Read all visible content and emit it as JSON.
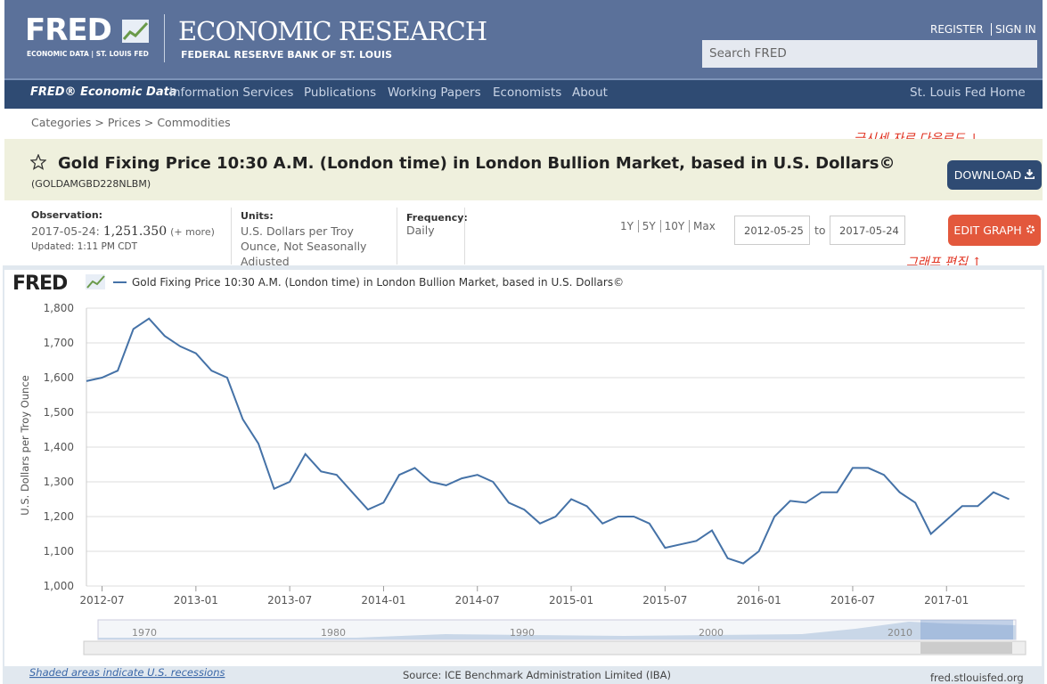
{
  "header": {
    "logo": "FRED",
    "logo_sub": "ECONOMIC DATA | ST. LOUIS FED",
    "org": "ECONOMIC RESEARCH",
    "org_sub": "FEDERAL RESERVE BANK OF ST. LOUIS",
    "register": "REGISTER",
    "sign_in": "SIGN IN",
    "search_placeholder": "Search FRED"
  },
  "nav": {
    "items": [
      "FRED® Economic Data",
      "Information Services",
      "Publications",
      "Working Papers",
      "Economists",
      "About"
    ],
    "right": "St. Louis Fed Home"
  },
  "breadcrumb": {
    "items": [
      "Categories",
      "Prices",
      "Commodities"
    ],
    "separator": ">"
  },
  "series": {
    "title": "Gold Fixing Price 10:30 A.M. (London time) in London Bullion Market, based in U.S. Dollars©",
    "id": "(GOLDAMGBD228NLBM)",
    "download": "DOWNLOAD",
    "edit": "EDIT GRAPH"
  },
  "meta": {
    "observation_label": "Observation:",
    "observation_date": "2017-05-24:",
    "observation_value": "1,251.350",
    "more": "(+ more)",
    "updated": "Updated: 1:11 PM CDT",
    "units_label": "Units:",
    "units": "U.S. Dollars per Troy Ounce, Not Seasonally Adjusted",
    "frequency_label": "Frequency:",
    "frequency": "Daily",
    "ranges": [
      "1Y",
      "5Y",
      "10Y",
      "Max"
    ],
    "start": "2012-05-25",
    "to": "to",
    "end": "2017-05-24"
  },
  "annotations": {
    "download_note": "금시세 자료 다운로드 ↓",
    "edit_note": "그래프 편집 ↑"
  },
  "chart_data": {
    "type": "line",
    "logo": "FRED",
    "y_label": "U.S. Dollars per Troy Ounce",
    "grid": true,
    "x": [
      "2012-06",
      "2012-07",
      "2012-08",
      "2012-09",
      "2012-10",
      "2012-11",
      "2012-12",
      "2013-01",
      "2013-02",
      "2013-03",
      "2013-04",
      "2013-05",
      "2013-06",
      "2013-07",
      "2013-08",
      "2013-09",
      "2013-10",
      "2013-11",
      "2013-12",
      "2014-01",
      "2014-02",
      "2014-03",
      "2014-04",
      "2014-05",
      "2014-06",
      "2014-07",
      "2014-08",
      "2014-09",
      "2014-10",
      "2014-11",
      "2014-12",
      "2015-01",
      "2015-02",
      "2015-03",
      "2015-04",
      "2015-05",
      "2015-06",
      "2015-07",
      "2015-08",
      "2015-09",
      "2015-10",
      "2015-11",
      "2015-12",
      "2016-01",
      "2016-02",
      "2016-03",
      "2016-04",
      "2016-05",
      "2016-06",
      "2016-07",
      "2016-08",
      "2016-09",
      "2016-10",
      "2016-11",
      "2016-12",
      "2017-01",
      "2017-02",
      "2017-03",
      "2017-04",
      "2017-05"
    ],
    "series": [
      {
        "name": "Gold Fixing Price 10:30 A.M. (London time) in London Bullion Market, based in U.S. Dollars©",
        "color": "#4572a7",
        "values": [
          1590,
          1600,
          1620,
          1740,
          1770,
          1720,
          1690,
          1670,
          1620,
          1600,
          1480,
          1410,
          1280,
          1300,
          1380,
          1330,
          1320,
          1270,
          1220,
          1240,
          1320,
          1340,
          1300,
          1290,
          1310,
          1320,
          1300,
          1240,
          1220,
          1180,
          1200,
          1250,
          1230,
          1180,
          1200,
          1200,
          1180,
          1110,
          1120,
          1130,
          1160,
          1080,
          1065,
          1100,
          1200,
          1245,
          1240,
          1270,
          1270,
          1340,
          1340,
          1320,
          1270,
          1240,
          1150,
          1190,
          1230,
          1230,
          1270,
          1250
        ]
      }
    ],
    "xlim": [
      "2012-06",
      "2017-06"
    ],
    "xticks": [
      "2012-07",
      "2013-01",
      "2013-07",
      "2014-01",
      "2014-07",
      "2015-01",
      "2015-07",
      "2016-01",
      "2016-07",
      "2017-01"
    ],
    "ylim": [
      1000,
      1800
    ],
    "yticks": [
      {
        "value": 1000,
        "label": "1,000"
      },
      {
        "value": 1100,
        "label": "1,100"
      },
      {
        "value": 1200,
        "label": "1,200"
      },
      {
        "value": 1300,
        "label": "1,300"
      },
      {
        "value": 1400,
        "label": "1,400"
      },
      {
        "value": 1500,
        "label": "1,500"
      },
      {
        "value": 1600,
        "label": "1,600"
      },
      {
        "value": 1700,
        "label": "1,700"
      },
      {
        "value": 1800,
        "label": "1,800"
      }
    ]
  },
  "navigator": {
    "years": [
      "1970",
      "1980",
      "1990",
      "2000",
      "2010"
    ]
  },
  "footer": {
    "recessions": "Shaded areas indicate U.S. recessions",
    "source": "Source: ICE Benchmark Administration Limited (IBA)",
    "site": "fred.stlouisfed.org"
  }
}
